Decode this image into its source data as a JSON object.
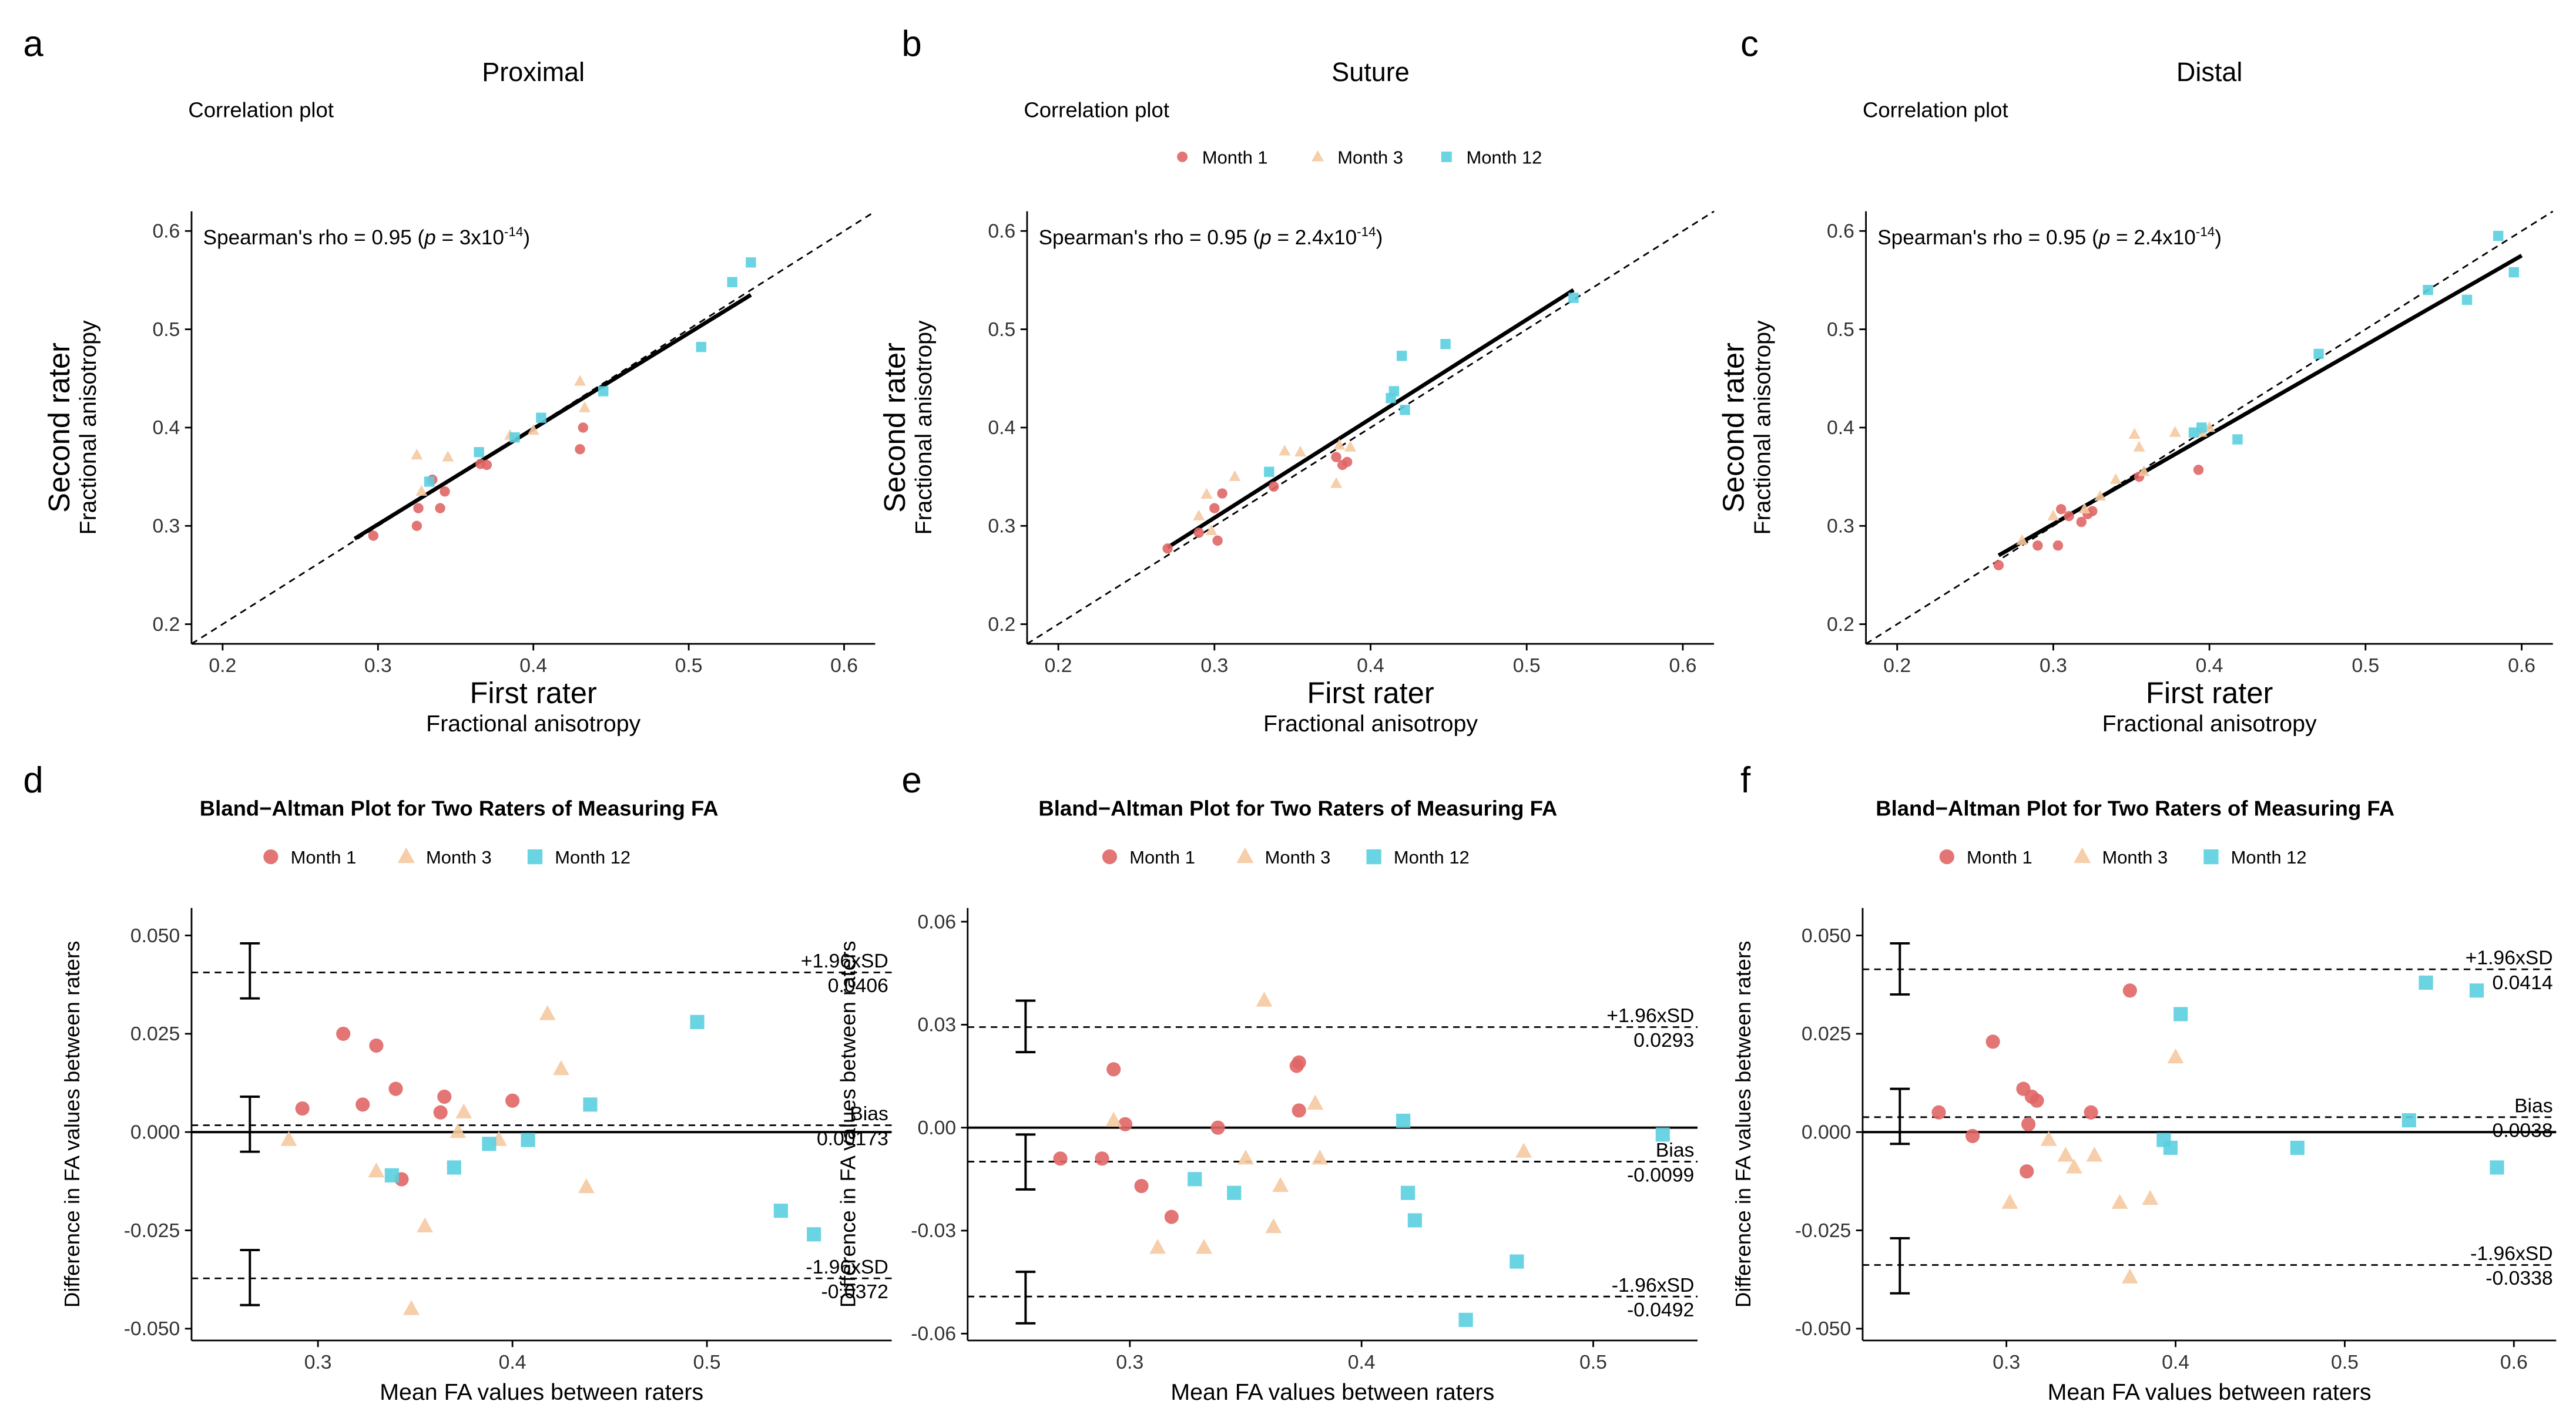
{
  "colors": {
    "month1": "#E06666",
    "month3": "#F5C9A0",
    "month12": "#5BCFE0",
    "line": "#000000"
  },
  "legend": [
    {
      "label": "Month 1",
      "shape": "circle",
      "color": "#E06666"
    },
    {
      "label": "Month 3",
      "shape": "triangle",
      "color": "#F5C9A0"
    },
    {
      "label": "Month 12",
      "shape": "square",
      "color": "#5BCFE0"
    }
  ],
  "chart_data": [
    {
      "type": "scatter",
      "panel_letter": "a",
      "title": "Proximal",
      "subtitle": "Correlation plot",
      "xlabel": "First rater",
      "xsublabel": "Fractional anisotropy",
      "ylabel": "Second rater",
      "ysublabel": "Fractional anisotropy",
      "stats": {
        "prefix": "Spearman's rho = 0.95 (",
        "p_symbol": "p",
        "p_value": " = 3x10",
        "exponent": "-14",
        "suffix": ")"
      },
      "xlim": [
        0.18,
        0.62
      ],
      "ylim": [
        0.18,
        0.62
      ],
      "xticks": [
        "0.2",
        "0.3",
        "0.4",
        "0.5",
        "0.6"
      ],
      "yticks": [
        "0.2",
        "0.3",
        "0.4",
        "0.5",
        "0.6"
      ],
      "show_legend": false,
      "identity_line": true,
      "fit_line": {
        "x": [
          0.285,
          0.54
        ],
        "y": [
          0.287,
          0.535
        ]
      },
      "series": [
        {
          "name": "Month 1",
          "x": [
            0.297,
            0.325,
            0.326,
            0.335,
            0.34,
            0.343,
            0.366,
            0.37,
            0.43,
            0.432
          ],
          "y": [
            0.29,
            0.3,
            0.318,
            0.347,
            0.318,
            0.335,
            0.363,
            0.362,
            0.378,
            0.4
          ]
        },
        {
          "name": "Month 3",
          "x": [
            0.325,
            0.328,
            0.345,
            0.385,
            0.4,
            0.43,
            0.433
          ],
          "y": [
            0.372,
            0.335,
            0.37,
            0.392,
            0.397,
            0.447,
            0.42
          ]
        },
        {
          "name": "Month 12",
          "x": [
            0.333,
            0.365,
            0.388,
            0.405,
            0.445,
            0.508,
            0.528,
            0.54
          ],
          "y": [
            0.345,
            0.375,
            0.39,
            0.41,
            0.437,
            0.482,
            0.548,
            0.568
          ]
        }
      ]
    },
    {
      "type": "scatter",
      "panel_letter": "b",
      "title": "Suture",
      "subtitle": "Correlation plot",
      "xlabel": "First rater",
      "xsublabel": "Fractional anisotropy",
      "ylabel": "Second rater",
      "ysublabel": "Fractional anisotropy",
      "stats": {
        "prefix": "Spearman's rho = 0.95 (",
        "p_symbol": "p",
        "p_value": " = 2.4x10",
        "exponent": "-14",
        "suffix": ")"
      },
      "xlim": [
        0.18,
        0.62
      ],
      "ylim": [
        0.18,
        0.62
      ],
      "xticks": [
        "0.2",
        "0.3",
        "0.4",
        "0.5",
        "0.6"
      ],
      "yticks": [
        "0.2",
        "0.3",
        "0.4",
        "0.5",
        "0.6"
      ],
      "show_legend": true,
      "identity_line": true,
      "fit_line": {
        "x": [
          0.27,
          0.53
        ],
        "y": [
          0.278,
          0.54
        ]
      },
      "series": [
        {
          "name": "Month 1",
          "x": [
            0.27,
            0.29,
            0.3,
            0.302,
            0.305,
            0.338,
            0.378,
            0.382,
            0.385
          ],
          "y": [
            0.277,
            0.293,
            0.318,
            0.285,
            0.333,
            0.34,
            0.37,
            0.362,
            0.365
          ]
        },
        {
          "name": "Month 3",
          "x": [
            0.29,
            0.295,
            0.298,
            0.313,
            0.345,
            0.355,
            0.378,
            0.38,
            0.387
          ],
          "y": [
            0.31,
            0.332,
            0.295,
            0.35,
            0.376,
            0.375,
            0.343,
            0.382,
            0.38
          ]
        },
        {
          "name": "Month 12",
          "x": [
            0.335,
            0.413,
            0.415,
            0.42,
            0.422,
            0.448,
            0.53
          ],
          "y": [
            0.355,
            0.43,
            0.437,
            0.473,
            0.418,
            0.485,
            0.532
          ]
        }
      ]
    },
    {
      "type": "scatter",
      "panel_letter": "c",
      "title": "Distal",
      "subtitle": "Correlation plot",
      "xlabel": "First rater",
      "xsublabel": "Fractional anisotropy",
      "ylabel": "Second rater",
      "ysublabel": "Fractional anisotropy",
      "stats": {
        "prefix": "Spearman's rho = 0.95 (",
        "p_symbol": "p",
        "p_value": " = 2.4x10",
        "exponent": "-14",
        "suffix": ")"
      },
      "xlim": [
        0.18,
        0.62
      ],
      "ylim": [
        0.18,
        0.62
      ],
      "xticks": [
        "0.2",
        "0.3",
        "0.4",
        "0.5",
        "0.6"
      ],
      "yticks": [
        "0.2",
        "0.3",
        "0.4",
        "0.5",
        "0.6"
      ],
      "show_legend": false,
      "identity_line": true,
      "fit_line": {
        "x": [
          0.265,
          0.6
        ],
        "y": [
          0.27,
          0.575
        ]
      },
      "series": [
        {
          "name": "Month 1",
          "x": [
            0.265,
            0.29,
            0.303,
            0.305,
            0.31,
            0.318,
            0.322,
            0.325,
            0.355,
            0.393
          ],
          "y": [
            0.26,
            0.28,
            0.28,
            0.317,
            0.31,
            0.304,
            0.312,
            0.315,
            0.35,
            0.357
          ]
        },
        {
          "name": "Month 3",
          "x": [
            0.28,
            0.3,
            0.32,
            0.33,
            0.34,
            0.352,
            0.355,
            0.358,
            0.378,
            0.395,
            0.4
          ],
          "y": [
            0.285,
            0.31,
            0.317,
            0.33,
            0.347,
            0.393,
            0.38,
            0.355,
            0.395,
            0.395,
            0.4
          ]
        },
        {
          "name": "Month 12",
          "x": [
            0.39,
            0.395,
            0.418,
            0.47,
            0.54,
            0.565,
            0.585,
            0.595
          ],
          "y": [
            0.395,
            0.4,
            0.388,
            0.475,
            0.54,
            0.53,
            0.595,
            0.558
          ]
        }
      ]
    },
    {
      "type": "scatter",
      "panel_letter": "d",
      "title": "Bland−Altman Plot for Two Raters of Measuring FA",
      "xlabel": "Mean FA values between raters",
      "ylabel": "Difference in FA values between raters",
      "xlim": [
        0.235,
        0.595
      ],
      "ylim": [
        -0.053,
        0.057
      ],
      "xticks": [
        "0.3",
        "0.4",
        "0.5"
      ],
      "yticks": [
        "0.050",
        "0.025",
        "0.000",
        "-0.025",
        "-0.050"
      ],
      "show_legend": true,
      "zero_line": true,
      "ref_lines": [
        {
          "name": "upper",
          "value": 0.0406,
          "label": "+1.96xSD",
          "value_label": "0.0406",
          "ci": [
            0.034,
            0.048
          ]
        },
        {
          "name": "bias",
          "value": 0.00173,
          "label": "Bias",
          "value_label": "0.00173",
          "ci": [
            -0.005,
            0.009
          ]
        },
        {
          "name": "lower",
          "value": -0.0372,
          "label": "-1.96xSD",
          "value_label": "-0.0372",
          "ci": [
            -0.044,
            -0.03
          ]
        }
      ],
      "errorbar_x": 0.265,
      "series": [
        {
          "name": "Month 1",
          "x": [
            0.292,
            0.313,
            0.323,
            0.33,
            0.34,
            0.343,
            0.363,
            0.365,
            0.4
          ],
          "y": [
            0.006,
            0.025,
            0.007,
            0.022,
            0.011,
            -0.012,
            0.005,
            0.009,
            0.008
          ]
        },
        {
          "name": "Month 3",
          "x": [
            0.285,
            0.33,
            0.355,
            0.348,
            0.372,
            0.375,
            0.393,
            0.418,
            0.425,
            0.438
          ],
          "y": [
            -0.002,
            -0.01,
            -0.024,
            -0.045,
            0.0,
            0.005,
            -0.002,
            0.03,
            0.016,
            -0.014
          ]
        },
        {
          "name": "Month 12",
          "x": [
            0.338,
            0.37,
            0.388,
            0.408,
            0.44,
            0.495,
            0.538,
            0.555
          ],
          "y": [
            -0.011,
            -0.009,
            -0.003,
            -0.002,
            0.007,
            0.028,
            -0.02,
            -0.026
          ]
        }
      ]
    },
    {
      "type": "scatter",
      "panel_letter": "e",
      "title": "Bland−Altman Plot for Two Raters of Measuring FA",
      "xlabel": "Mean FA values between raters",
      "ylabel": "Difference in FA values between raters",
      "xlim": [
        0.23,
        0.545
      ],
      "ylim": [
        -0.062,
        0.064
      ],
      "xticks": [
        "0.3",
        "0.4",
        "0.5"
      ],
      "yticks": [
        "0.06",
        "0.03",
        "0.00",
        "-0.03",
        "-0.06"
      ],
      "show_legend": true,
      "zero_line": true,
      "ref_lines": [
        {
          "name": "upper",
          "value": 0.0293,
          "label": "+1.96xSD",
          "value_label": "0.0293",
          "ci": [
            0.022,
            0.037
          ]
        },
        {
          "name": "bias",
          "value": -0.0099,
          "label": "Bias",
          "value_label": "-0.0099",
          "ci": [
            -0.018,
            -0.002
          ]
        },
        {
          "name": "lower",
          "value": -0.0492,
          "label": "-1.96xSD",
          "value_label": "-0.0492",
          "ci": [
            -0.057,
            -0.042
          ]
        }
      ],
      "errorbar_x": 0.255,
      "series": [
        {
          "name": "Month 1",
          "x": [
            0.27,
            0.288,
            0.293,
            0.298,
            0.305,
            0.318,
            0.338,
            0.372,
            0.373,
            0.373
          ],
          "y": [
            -0.009,
            -0.009,
            0.017,
            0.001,
            -0.017,
            -0.026,
            0.0,
            0.018,
            0.019,
            0.005
          ]
        },
        {
          "name": "Month 3",
          "x": [
            0.293,
            0.312,
            0.332,
            0.35,
            0.358,
            0.362,
            0.365,
            0.38,
            0.382,
            0.47
          ],
          "y": [
            0.002,
            -0.035,
            -0.035,
            -0.009,
            0.037,
            -0.029,
            -0.017,
            0.007,
            -0.009,
            -0.007
          ]
        },
        {
          "name": "Month 12",
          "x": [
            0.328,
            0.345,
            0.418,
            0.42,
            0.423,
            0.445,
            0.467,
            0.53
          ],
          "y": [
            -0.015,
            -0.019,
            0.002,
            -0.019,
            -0.027,
            -0.056,
            -0.039,
            -0.002
          ]
        }
      ]
    },
    {
      "type": "scatter",
      "panel_letter": "f",
      "title": "Bland−Altman Plot for Two Raters of Measuring FA",
      "xlabel": "Mean FA values between raters",
      "ylabel": "Difference in FA values between raters",
      "xlim": [
        0.215,
        0.625
      ],
      "ylim": [
        -0.053,
        0.057
      ],
      "xticks": [
        "0.3",
        "0.4",
        "0.5",
        "0.6"
      ],
      "yticks": [
        "0.050",
        "0.025",
        "0.000",
        "-0.025",
        "-0.050"
      ],
      "show_legend": true,
      "zero_line": true,
      "ref_lines": [
        {
          "name": "upper",
          "value": 0.0414,
          "label": "+1.96xSD",
          "value_label": "0.0414",
          "ci": [
            0.035,
            0.048
          ]
        },
        {
          "name": "bias",
          "value": 0.0038,
          "label": "Bias",
          "value_label": "0.0038",
          "ci": [
            -0.003,
            0.011
          ]
        },
        {
          "name": "lower",
          "value": -0.0338,
          "label": "-1.96xSD",
          "value_label": "-0.0338",
          "ci": [
            -0.041,
            -0.027
          ]
        }
      ],
      "errorbar_x": 0.237,
      "series": [
        {
          "name": "Month 1",
          "x": [
            0.26,
            0.28,
            0.292,
            0.31,
            0.312,
            0.313,
            0.315,
            0.318,
            0.35,
            0.373
          ],
          "y": [
            0.005,
            -0.001,
            0.023,
            0.011,
            -0.01,
            0.002,
            0.009,
            0.008,
            0.005,
            0.036
          ]
        },
        {
          "name": "Month 3",
          "x": [
            0.302,
            0.325,
            0.335,
            0.34,
            0.352,
            0.367,
            0.373,
            0.385,
            0.4
          ],
          "y": [
            -0.018,
            -0.002,
            -0.006,
            -0.009,
            -0.006,
            -0.018,
            -0.037,
            -0.017,
            0.019
          ]
        },
        {
          "name": "Month 12",
          "x": [
            0.393,
            0.397,
            0.403,
            0.472,
            0.538,
            0.548,
            0.578,
            0.59
          ],
          "y": [
            -0.002,
            -0.004,
            0.03,
            -0.004,
            0.003,
            0.038,
            0.036,
            -0.009
          ]
        }
      ]
    }
  ]
}
